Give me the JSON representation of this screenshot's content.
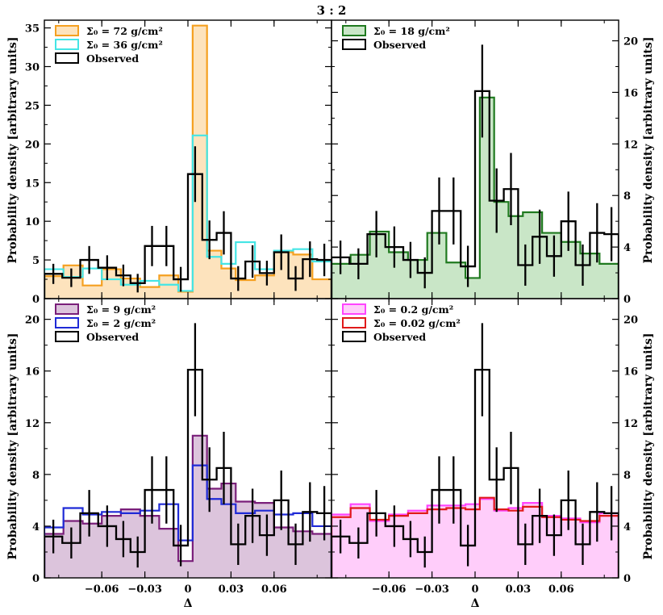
{
  "chart_data": {
    "type": "histogram-panels",
    "title": "3 : 2",
    "xlabel": "Δ",
    "ylabel": "Probability density [arbitrary units]",
    "xlim": [
      -0.1,
      0.1
    ],
    "bin_edges": [
      -0.1,
      -0.0867,
      -0.0733,
      -0.06,
      -0.0467,
      -0.0333,
      -0.02,
      -0.0067,
      0.0033,
      0.0133,
      0.0233,
      0.0333,
      0.0467,
      0.06,
      0.0733,
      0.0867,
      0.1
    ],
    "x_ticks": [
      -0.06,
      -0.03,
      0,
      0.03,
      0.06
    ],
    "x_tick_labels": [
      "−0.06",
      "−0.03",
      "0",
      "0.03",
      "0.06"
    ],
    "observed_bin_edges": [
      -0.1,
      -0.0875,
      -0.075,
      -0.0625,
      -0.05,
      -0.04,
      -0.03,
      -0.02,
      -0.01,
      0.0,
      0.01,
      0.02,
      0.03,
      0.04,
      0.05,
      0.06,
      0.07,
      0.08,
      0.09,
      0.1
    ],
    "observed_values": [
      3.2,
      2.7,
      5.0,
      4.0,
      3.0,
      2.0,
      6.8,
      6.8,
      2.5,
      16.1,
      7.6,
      8.5,
      2.6,
      4.8,
      3.3,
      6.0,
      2.6,
      5.1,
      5.0
    ],
    "observed_errors": [
      1.3,
      1.2,
      1.8,
      1.6,
      1.4,
      1.2,
      2.6,
      2.6,
      1.6,
      3.6,
      2.5,
      2.8,
      1.6,
      2.1,
      1.6,
      2.3,
      1.6,
      2.3,
      2.1
    ],
    "panels": [
      {
        "id": "top-left",
        "ylim": [
          0,
          36
        ],
        "y_ticks": [
          0,
          5,
          10,
          15,
          20,
          25,
          30,
          35
        ],
        "y_tick_labels": [
          "0",
          "5",
          "10",
          "15",
          "20",
          "25",
          "30",
          "35"
        ],
        "y_axis_side": "left",
        "observed_scale": 1.0,
        "legend_position": "top-left",
        "series": [
          {
            "name": "Σ0 = 72 g/cm²",
            "label": "Σ₀ = 72 g/cm²",
            "color": "#f5a020",
            "fill": "#fde3bd",
            "filled": true,
            "values": [
              2.9,
              4.3,
              1.7,
              3.8,
              2.6,
              1.5,
              3.0,
              0.9,
              35.3,
              6.2,
              3.9,
              2.4,
              3.0,
              6.0,
              5.7,
              2.5
            ]
          },
          {
            "name": "Σ0 = 36 g/cm²",
            "label": "Σ₀ = 36 g/cm²",
            "color": "#44e5e5",
            "fill": null,
            "filled": false,
            "values": [
              3.8,
              2.8,
              3.9,
              2.5,
              1.8,
              2.3,
              1.8,
              1.0,
              21.1,
              5.4,
              4.5,
              7.3,
              3.8,
              6.2,
              6.4,
              4.8
            ]
          }
        ]
      },
      {
        "id": "top-right",
        "ylim": [
          0,
          21.6
        ],
        "y_ticks": [
          0,
          4,
          8,
          12,
          16,
          20
        ],
        "y_tick_labels": [
          "0",
          "4",
          "8",
          "12",
          "16",
          "20"
        ],
        "y_axis_side": "right",
        "observed_scale": 1.0,
        "legend_position": "top-left",
        "series": [
          {
            "name": "Σ0 = 18 g/cm²",
            "label": "Σ₀ = 18 g/cm²",
            "color": "#1f7a1f",
            "fill": "#c9e6c7",
            "filled": true,
            "values": [
              2.7,
              3.4,
              5.2,
              3.6,
              3.0,
              5.1,
              2.8,
              1.6,
              15.6,
              7.5,
              6.4,
              6.7,
              5.1,
              4.4,
              3.5,
              2.7
            ]
          }
        ]
      },
      {
        "id": "bottom-left",
        "ylim": [
          0,
          21.6
        ],
        "y_ticks": [
          0,
          4,
          8,
          12,
          16,
          20
        ],
        "y_tick_labels": [
          "0",
          "4",
          "8",
          "12",
          "16",
          "20"
        ],
        "y_axis_side": "left",
        "observed_scale": 1.0,
        "legend_position": "top-left",
        "series": [
          {
            "name": "Σ0 = 9 g/cm²",
            "label": "Σ₀ = 9 g/cm²",
            "color": "#7a1f7a",
            "fill": "#dcc4dc",
            "filled": true,
            "values": [
              3.4,
              4.4,
              4.2,
              4.8,
              5.3,
              4.8,
              3.8,
              1.3,
              11.0,
              6.9,
              7.3,
              5.9,
              5.8,
              3.9,
              3.6,
              3.4
            ]
          },
          {
            "name": "Σ0 = 2 g/cm²",
            "label": "Σ₀ = 2 g/cm²",
            "color": "#1f2ad6",
            "fill": null,
            "filled": false,
            "values": [
              3.9,
              5.4,
              4.9,
              5.1,
              5.0,
              5.2,
              5.7,
              2.9,
              8.7,
              6.1,
              5.7,
              5.0,
              5.2,
              4.9,
              5.0,
              4.0
            ]
          }
        ]
      },
      {
        "id": "bottom-right",
        "ylim": [
          0,
          21.6
        ],
        "y_ticks": [
          0,
          4,
          8,
          12,
          16,
          20
        ],
        "y_tick_labels": [
          "0",
          "4",
          "8",
          "12",
          "16",
          "20"
        ],
        "y_axis_side": "right",
        "observed_scale": 1.0,
        "legend_position": "top-left",
        "series": [
          {
            "name": "Σ0 = 0.2 g/cm²",
            "label": "Σ₀ = 0.2 g/cm²",
            "color": "#ff44ff",
            "fill": "#ffcdfa",
            "filled": true,
            "values": [
              4.9,
              5.7,
              4.4,
              4.9,
              5.2,
              5.6,
              5.6,
              5.7,
              6.1,
              5.2,
              5.4,
              5.8,
              4.8,
              4.6,
              4.3,
              5.0
            ]
          },
          {
            "name": "Σ0 = 0.02 g/cm²",
            "label": "Σ₀ = 0.02 g/cm²",
            "color": "#e01a1a",
            "fill": null,
            "filled": false,
            "values": [
              4.7,
              5.4,
              4.5,
              4.8,
              5.0,
              5.3,
              5.4,
              5.3,
              6.2,
              5.3,
              5.2,
              5.5,
              4.7,
              4.5,
              4.4,
              4.8
            ]
          }
        ]
      }
    ],
    "observed_label": "Observed",
    "observed_color": "#000000"
  }
}
